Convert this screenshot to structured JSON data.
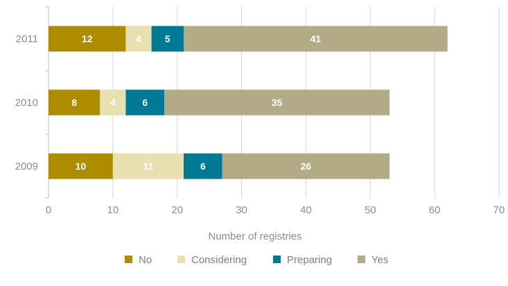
{
  "chart_data": {
    "type": "bar",
    "orientation": "horizontal",
    "stacked": true,
    "categories": [
      "2009",
      "2010",
      "2011"
    ],
    "series": [
      {
        "name": "No",
        "values": [
          10,
          8,
          12
        ],
        "color": "#ad8c00"
      },
      {
        "name": "Considering",
        "values": [
          11,
          4,
          4
        ],
        "color": "#e8e0b0"
      },
      {
        "name": "Preparing",
        "values": [
          6,
          6,
          5
        ],
        "color": "#007a94"
      },
      {
        "name": "Yes",
        "values": [
          26,
          35,
          41
        ],
        "color": "#b2ab85"
      }
    ],
    "xlabel": "Number of registries",
    "ylabel": "",
    "xlim": [
      0,
      70
    ],
    "xticks": [
      0,
      10,
      20,
      30,
      40,
      50,
      60,
      70
    ],
    "grid": true,
    "legend": "bottom"
  }
}
